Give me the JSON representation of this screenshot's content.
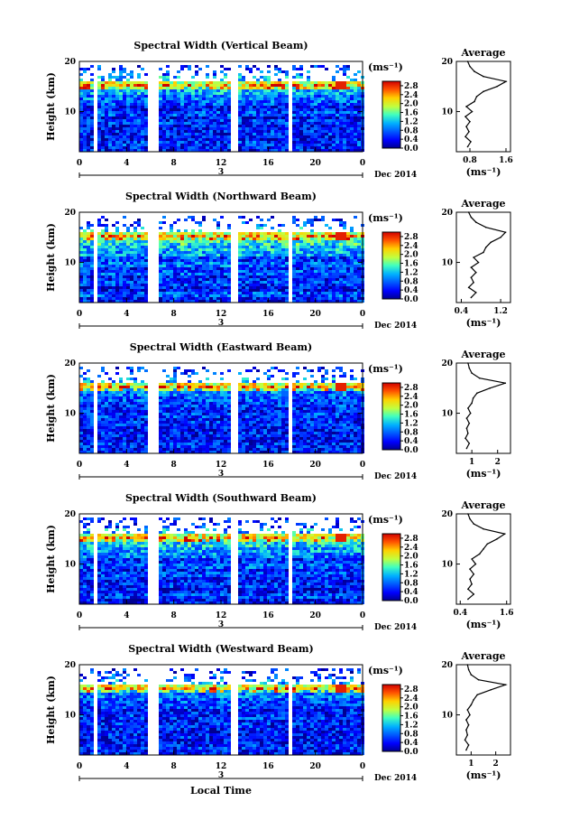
{
  "figure": {
    "xlabel": "Local Time",
    "date_label": "Dec 2014",
    "day_label": "3",
    "colorbar_unit": "(ms⁻¹)",
    "profile_title": "Average",
    "profile_xlabel": "(ms⁻¹)",
    "ylabel": "Height (km)"
  },
  "chart_data": [
    {
      "type": "heatmap",
      "title": "Spectral Width (Vertical Beam)",
      "ylabel": "Height (km)",
      "x_ticks": [
        "0",
        "4",
        "8",
        "12",
        "16",
        "20",
        "0"
      ],
      "y_ticks": [
        "10",
        "20"
      ],
      "xlim": [
        0,
        24
      ],
      "ylim": [
        2,
        20
      ],
      "colorbar": {
        "unit": "(ms⁻¹)",
        "ticks": [
          "0.0",
          "0.4",
          "0.8",
          "1.2",
          "1.6",
          "2.0",
          "2.4",
          "2.8"
        ],
        "range": [
          0,
          3.0
        ]
      },
      "data_gaps_hours": [
        [
          1.0,
          1.3
        ],
        [
          5.8,
          6.6
        ],
        [
          12.0,
          12.2
        ],
        [
          12.8,
          13.2
        ],
        [
          17.6,
          17.8
        ],
        [
          18.4,
          18.6
        ]
      ],
      "profile": {
        "title": "Average",
        "xlabel": "(ms⁻¹)",
        "x_ticks": [
          "0.8",
          "1.6"
        ],
        "xlim": [
          0.5,
          1.7
        ],
        "heights_km": [
          3,
          4,
          5,
          6,
          7,
          8,
          9,
          10,
          11,
          12,
          13,
          14,
          15,
          16,
          17,
          18,
          19,
          20
        ],
        "values": [
          0.75,
          0.82,
          0.7,
          0.78,
          0.72,
          0.8,
          0.7,
          0.85,
          0.72,
          0.9,
          0.95,
          1.1,
          1.4,
          1.6,
          1.1,
          0.9,
          0.8,
          0.75
        ]
      }
    },
    {
      "type": "heatmap",
      "title": "Spectral Width (Northward Beam)",
      "ylabel": "Height (km)",
      "x_ticks": [
        "0",
        "4",
        "8",
        "12",
        "16",
        "20",
        "0"
      ],
      "y_ticks": [
        "10",
        "20"
      ],
      "xlim": [
        0,
        24
      ],
      "ylim": [
        2,
        20
      ],
      "colorbar": {
        "unit": "(ms⁻¹)",
        "ticks": [
          "0.0",
          "0.4",
          "0.8",
          "1.2",
          "1.6",
          "2.0",
          "2.4",
          "2.8"
        ],
        "range": [
          0,
          3.0
        ]
      },
      "data_gaps_hours": [
        [
          1.0,
          1.3
        ],
        [
          5.8,
          6.6
        ],
        [
          12.0,
          12.2
        ],
        [
          12.8,
          13.2
        ],
        [
          17.6,
          17.8
        ],
        [
          18.4,
          18.6
        ]
      ],
      "profile": {
        "title": "Average",
        "xlabel": "(ms⁻¹)",
        "x_ticks": [
          "0.4",
          "1.2"
        ],
        "xlim": [
          0.3,
          1.4
        ],
        "heights_km": [
          3,
          4,
          5,
          6,
          7,
          8,
          9,
          10,
          11,
          12,
          13,
          14,
          15,
          16,
          17,
          18,
          19,
          20
        ],
        "values": [
          0.6,
          0.7,
          0.55,
          0.65,
          0.6,
          0.7,
          0.6,
          0.75,
          0.65,
          0.85,
          0.9,
          1.0,
          1.2,
          1.3,
          0.9,
          0.7,
          0.6,
          0.55
        ]
      }
    },
    {
      "type": "heatmap",
      "title": "Spectral Width (Eastward Beam)",
      "ylabel": "Height (km)",
      "x_ticks": [
        "0",
        "4",
        "8",
        "12",
        "16",
        "20",
        "0"
      ],
      "y_ticks": [
        "10",
        "20"
      ],
      "xlim": [
        0,
        24
      ],
      "ylim": [
        2,
        20
      ],
      "colorbar": {
        "unit": "(ms⁻¹)",
        "ticks": [
          "0.0",
          "0.4",
          "0.8",
          "1.2",
          "1.6",
          "2.0",
          "2.4",
          "2.8"
        ],
        "range": [
          0,
          3.0
        ]
      },
      "data_gaps_hours": [
        [
          1.0,
          1.3
        ],
        [
          5.8,
          6.6
        ],
        [
          12.0,
          12.2
        ],
        [
          12.8,
          13.2
        ],
        [
          17.6,
          17.8
        ],
        [
          18.4,
          18.6
        ]
      ],
      "profile": {
        "title": "Average",
        "xlabel": "(ms⁻¹)",
        "x_ticks": [
          "1",
          "2"
        ],
        "xlim": [
          0.4,
          2.5
        ],
        "heights_km": [
          3,
          4,
          5,
          6,
          7,
          8,
          9,
          10,
          11,
          12,
          13,
          14,
          15,
          16,
          17,
          18,
          19,
          20
        ],
        "values": [
          0.8,
          0.9,
          0.75,
          0.85,
          0.8,
          0.9,
          0.8,
          0.95,
          0.85,
          1.0,
          1.05,
          1.2,
          1.7,
          2.3,
          1.3,
          1.0,
          0.9,
          0.85
        ]
      }
    },
    {
      "type": "heatmap",
      "title": "Spectral Width (Southward Beam)",
      "ylabel": "Height (km)",
      "x_ticks": [
        "0",
        "4",
        "8",
        "12",
        "16",
        "20",
        "0"
      ],
      "y_ticks": [
        "10",
        "20"
      ],
      "xlim": [
        0,
        24
      ],
      "ylim": [
        2,
        20
      ],
      "colorbar": {
        "unit": "(ms⁻¹)",
        "ticks": [
          "0.0",
          "0.4",
          "0.8",
          "1.2",
          "1.6",
          "2.0",
          "2.4",
          "2.8"
        ],
        "range": [
          0,
          3.0
        ]
      },
      "data_gaps_hours": [
        [
          1.0,
          1.3
        ],
        [
          5.8,
          6.6
        ],
        [
          12.0,
          12.2
        ],
        [
          12.8,
          13.2
        ],
        [
          17.6,
          17.8
        ],
        [
          18.4,
          18.6
        ]
      ],
      "profile": {
        "title": "Average",
        "xlabel": "(ms⁻¹)",
        "x_ticks": [
          "0.4",
          "1.6"
        ],
        "xlim": [
          0.3,
          1.7
        ],
        "heights_km": [
          3,
          4,
          5,
          6,
          7,
          8,
          9,
          10,
          11,
          12,
          13,
          14,
          15,
          16,
          17,
          18,
          19,
          20
        ],
        "values": [
          0.6,
          0.75,
          0.6,
          0.7,
          0.65,
          0.75,
          0.65,
          0.8,
          0.7,
          0.9,
          1.0,
          1.1,
          1.35,
          1.55,
          1.0,
          0.75,
          0.65,
          0.6
        ]
      }
    },
    {
      "type": "heatmap",
      "title": "Spectral Width (Westward Beam)",
      "ylabel": "Height (km)",
      "x_ticks": [
        "0",
        "4",
        "8",
        "12",
        "16",
        "20",
        "0"
      ],
      "y_ticks": [
        "10",
        "20"
      ],
      "xlim": [
        0,
        24
      ],
      "ylim": [
        2,
        20
      ],
      "colorbar": {
        "unit": "(ms⁻¹)",
        "ticks": [
          "0.0",
          "0.4",
          "0.8",
          "1.2",
          "1.6",
          "2.0",
          "2.4",
          "2.8"
        ],
        "range": [
          0,
          3.0
        ]
      },
      "data_gaps_hours": [
        [
          1.0,
          1.3
        ],
        [
          5.8,
          6.6
        ],
        [
          12.0,
          12.2
        ],
        [
          12.8,
          13.2
        ],
        [
          17.6,
          17.8
        ],
        [
          18.4,
          18.6
        ]
      ],
      "profile": {
        "title": "Average",
        "xlabel": "(ms⁻¹)",
        "x_ticks": [
          "1",
          "2"
        ],
        "xlim": [
          0.4,
          2.6
        ],
        "heights_km": [
          3,
          4,
          5,
          6,
          7,
          8,
          9,
          10,
          11,
          12,
          13,
          14,
          15,
          16,
          17,
          18,
          19,
          20
        ],
        "values": [
          0.8,
          0.9,
          0.75,
          0.85,
          0.8,
          0.9,
          0.8,
          0.95,
          0.85,
          1.0,
          1.1,
          1.25,
          1.8,
          2.4,
          1.3,
          1.0,
          0.9,
          0.85
        ]
      }
    }
  ]
}
